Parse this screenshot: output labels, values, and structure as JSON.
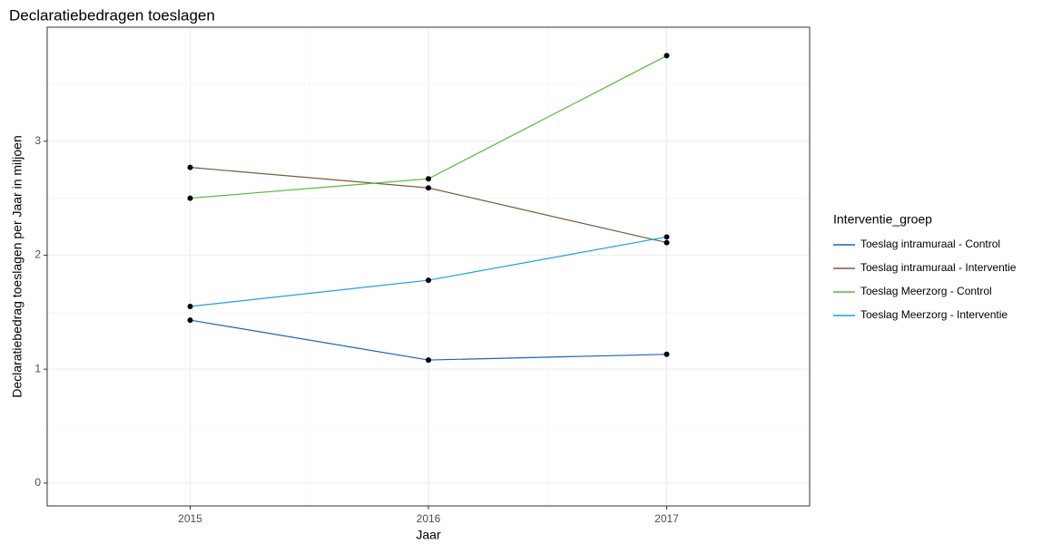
{
  "chart_data": {
    "type": "line",
    "title": "Declaratiebedragen toeslagen",
    "x_label": "Jaar",
    "y_label": "Declaratiebedrag toeslagen per Jaar in miljoen",
    "legend_title": "Interventie_groep",
    "x": [
      2015,
      2016,
      2017
    ],
    "xlim": [
      2014.4,
      2017.6
    ],
    "xticks": [
      2015,
      2016,
      2017
    ],
    "ylim": [
      -0.2,
      4.0
    ],
    "yticks": [
      0,
      1,
      2,
      3
    ],
    "grid": true,
    "legend_position": "right",
    "series": [
      {
        "name": "Toeslag intramuraal - Control",
        "color": "#1a63c4",
        "values": [
          1.43,
          1.08,
          1.13
        ]
      },
      {
        "name": "Toeslag intramuraal - Interventie",
        "color": "#7b5a3c",
        "values": [
          2.77,
          2.59,
          2.11
        ]
      },
      {
        "name": "Toeslag Meerzorg - Control",
        "color": "#5ab83c",
        "values": [
          2.5,
          2.67,
          3.75
        ]
      },
      {
        "name": "Toeslag Meerzorg - Interventie",
        "color": "#1ea0e6",
        "values": [
          1.55,
          1.78,
          2.16
        ]
      }
    ]
  }
}
